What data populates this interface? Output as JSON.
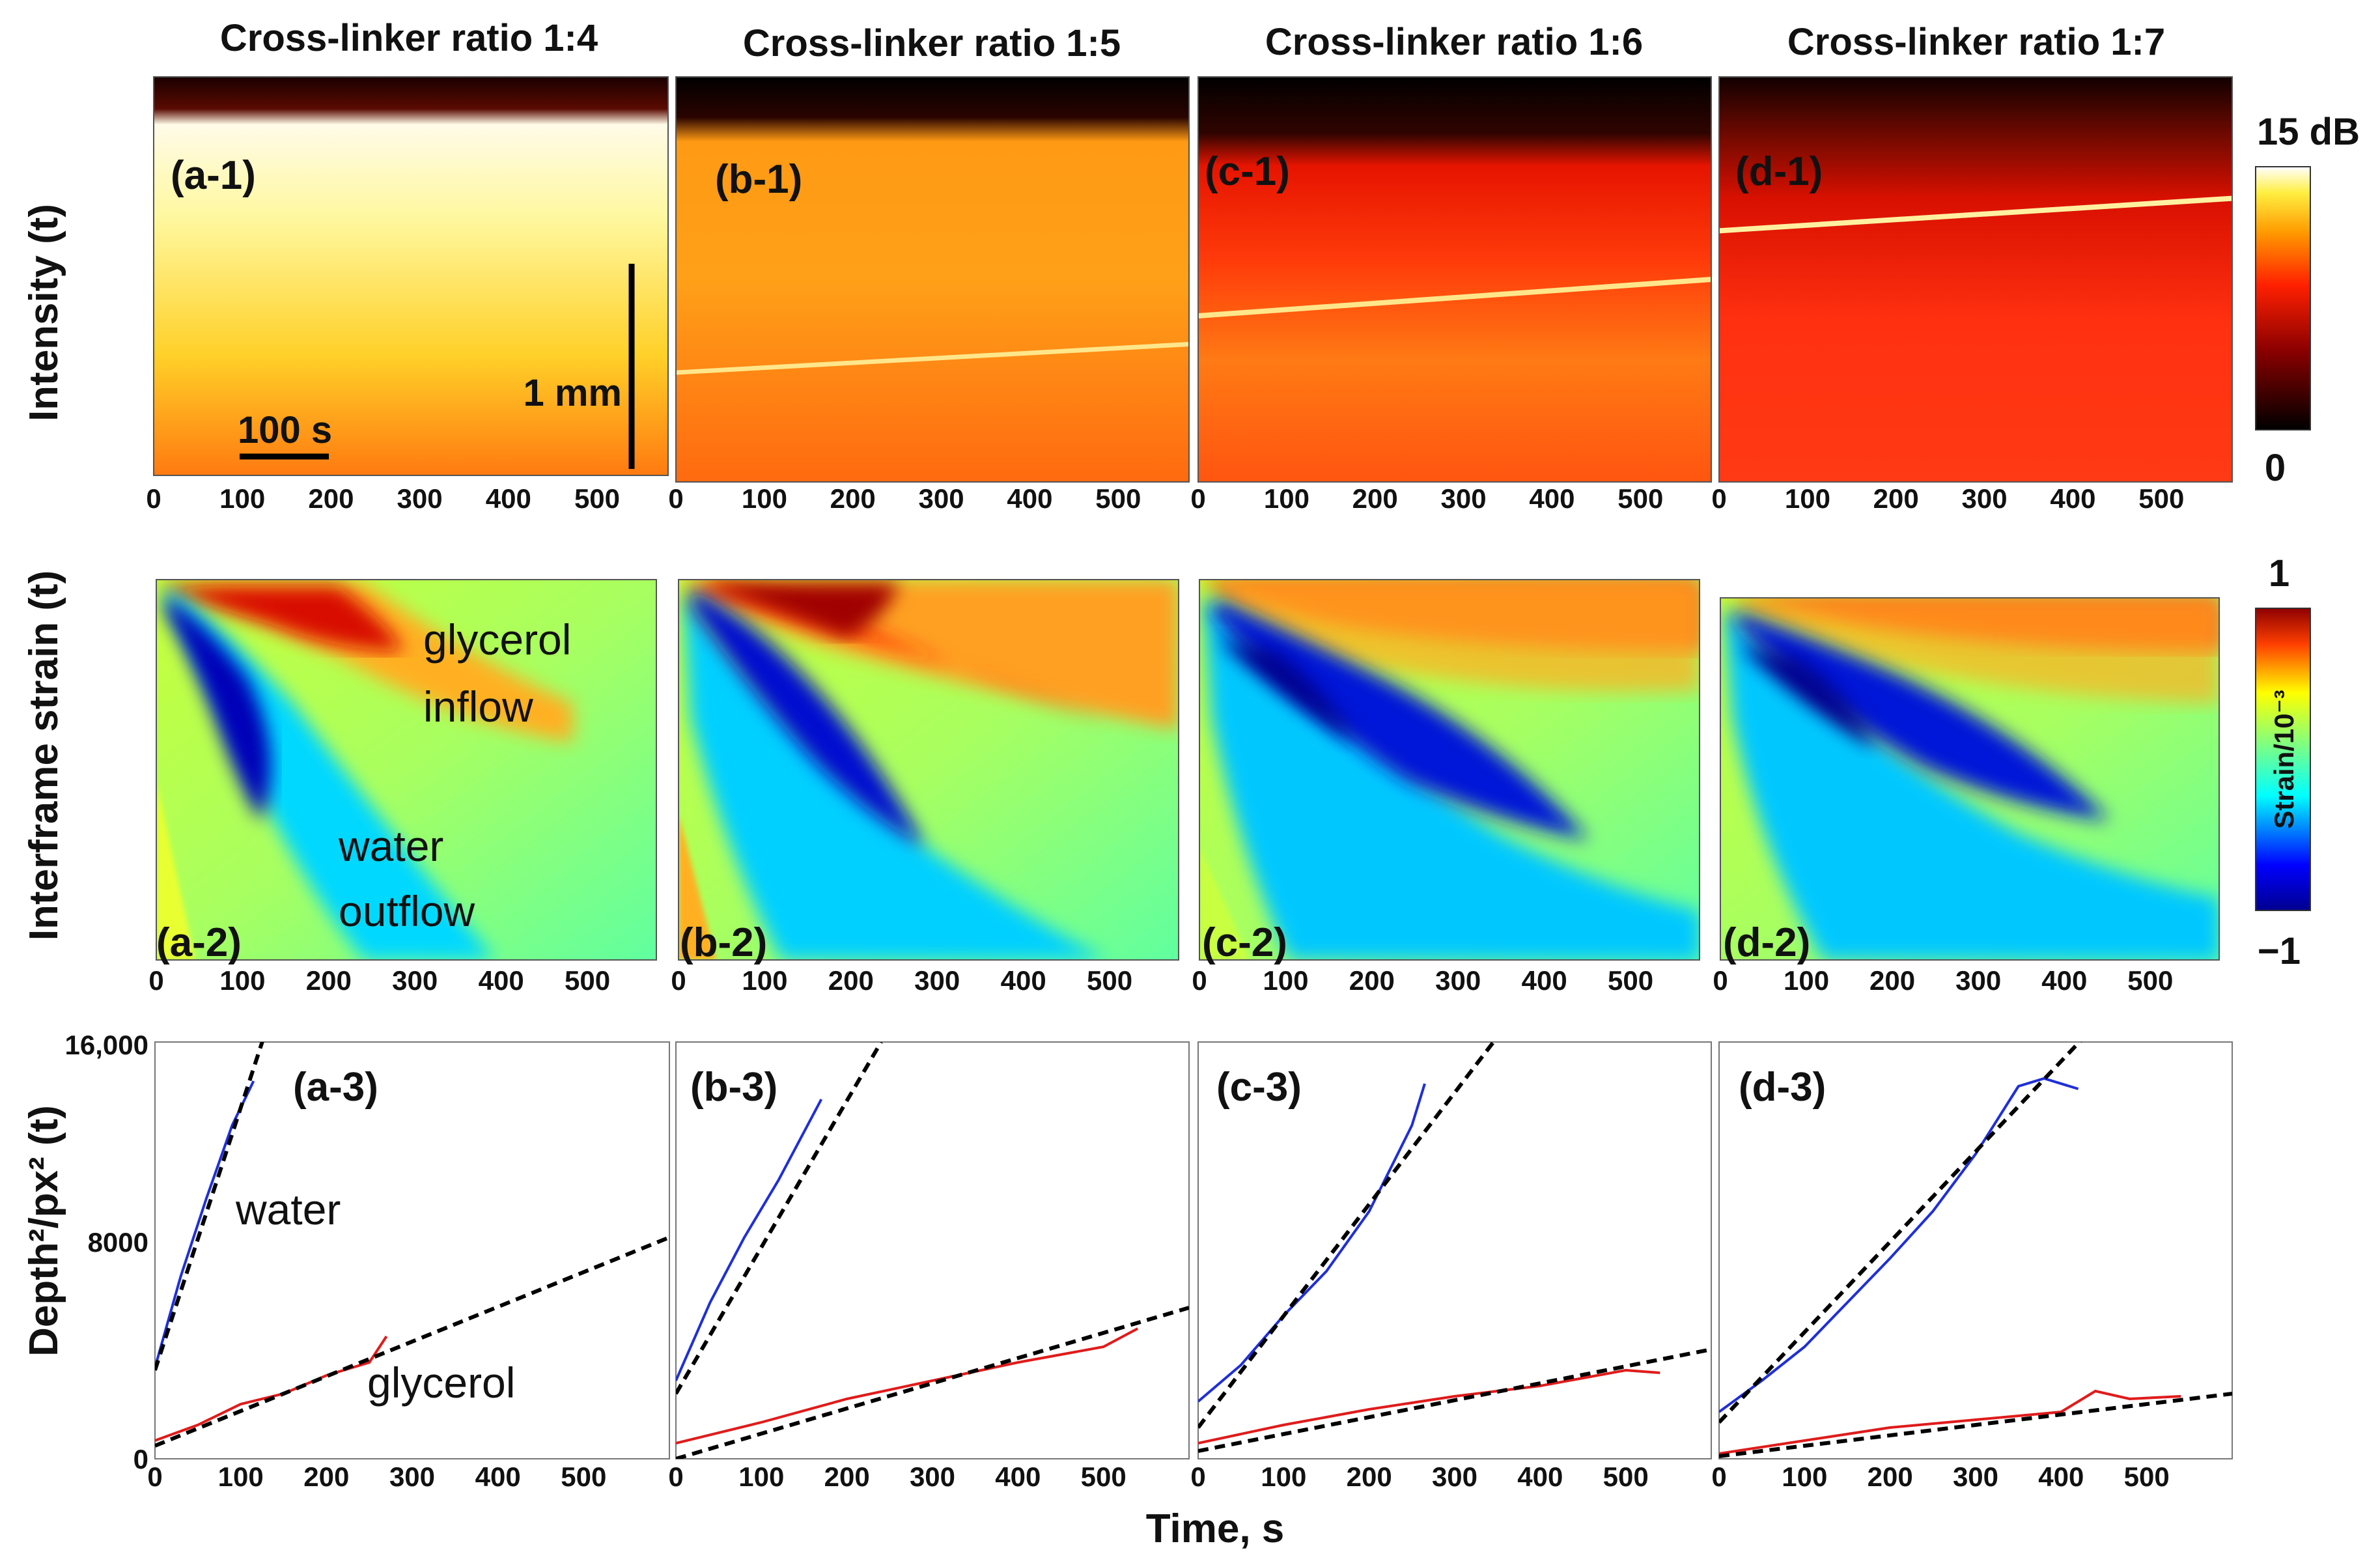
{
  "chart_data": [
    {
      "type": "heatmap",
      "title": "Cross-linker ratio 1:4",
      "panel_label": "(a-1)",
      "row_label": "Intensity (t)",
      "x_ticks": [
        "0",
        "100",
        "200",
        "300",
        "400",
        "500"
      ],
      "xlim": [
        0,
        580
      ],
      "line": null,
      "scalebars": {
        "time": "100 s",
        "depth": "1 mm"
      }
    },
    {
      "type": "heatmap",
      "title": "Cross-linker ratio 1:5",
      "panel_label": "(b-1)",
      "x_ticks": [
        "0",
        "100",
        "200",
        "300",
        "400",
        "500"
      ],
      "xlim": [
        0,
        580
      ],
      "line": {
        "t": [
          0,
          580
        ],
        "depth_frac": [
          0.73,
          0.66
        ]
      }
    },
    {
      "type": "heatmap",
      "title": "Cross-linker ratio 1:6",
      "panel_label": "(c-1)",
      "x_ticks": [
        "0",
        "100",
        "200",
        "300",
        "400",
        "500"
      ],
      "xlim": [
        0,
        580
      ],
      "line": {
        "t": [
          0,
          580
        ],
        "depth_frac": [
          0.59,
          0.5
        ]
      }
    },
    {
      "type": "heatmap",
      "title": "Cross-linker ratio 1:7",
      "panel_label": "(d-1)",
      "x_ticks": [
        "0",
        "100",
        "200",
        "300",
        "400",
        "500"
      ],
      "xlim": [
        0,
        580
      ],
      "line": {
        "t": [
          0,
          580
        ],
        "depth_frac": [
          0.38,
          0.3
        ]
      }
    },
    {
      "type": "heatmap",
      "panel_label": "(a-2)",
      "row_label": "Interframe strain (t)",
      "x_ticks": [
        "0",
        "100",
        "200",
        "300",
        "400",
        "500"
      ],
      "xlim": [
        0,
        580
      ],
      "annotations": [
        "glycerol",
        "inflow",
        "water",
        "outflow"
      ]
    },
    {
      "type": "heatmap",
      "panel_label": "(b-2)",
      "x_ticks": [
        "0",
        "100",
        "200",
        "300",
        "400",
        "500"
      ],
      "xlim": [
        0,
        580
      ]
    },
    {
      "type": "heatmap",
      "panel_label": "(c-2)",
      "x_ticks": [
        "0",
        "100",
        "200",
        "300",
        "400",
        "500"
      ],
      "xlim": [
        0,
        580
      ]
    },
    {
      "type": "heatmap",
      "panel_label": "(d-2)",
      "x_ticks": [
        "0",
        "100",
        "200",
        "300",
        "400",
        "500"
      ],
      "xlim": [
        0,
        580
      ]
    },
    {
      "type": "line",
      "panel_label": "(a-3)",
      "row_label": "Depth²/px² (t)",
      "y_ticks": [
        "16,000",
        "8000",
        "0"
      ],
      "ylim": [
        0,
        16000
      ],
      "xlim": [
        0,
        600
      ],
      "x_ticks": [
        "0",
        "100",
        "200",
        "300",
        "400",
        "500"
      ],
      "annotations": [
        "water",
        "glycerol"
      ],
      "series": [
        {
          "name": "water",
          "color": "#1f2fd8",
          "x": [
            0,
            30,
            60,
            90,
            115
          ],
          "y": [
            3500,
            7000,
            10000,
            12800,
            14500
          ]
        },
        {
          "name": "glycerol",
          "color": "#e01b1b",
          "x": [
            0,
            50,
            100,
            150,
            200,
            250,
            270
          ],
          "y": [
            700,
            1300,
            2100,
            2500,
            3200,
            3700,
            4700
          ]
        },
        {
          "name": "water fit",
          "color": "#000000",
          "dashed": true,
          "x": [
            0,
            130
          ],
          "y": [
            3400,
            16500
          ]
        },
        {
          "name": "glycerol fit",
          "color": "#000000",
          "dashed": true,
          "x": [
            0,
            600
          ],
          "y": [
            500,
            8500
          ]
        }
      ]
    },
    {
      "type": "line",
      "panel_label": "(b-3)",
      "ylim": [
        0,
        16000
      ],
      "xlim": [
        0,
        600
      ],
      "x_ticks": [
        "0",
        "100",
        "200",
        "300",
        "400",
        "500"
      ],
      "series": [
        {
          "name": "water",
          "color": "#1f2fd8",
          "x": [
            0,
            40,
            80,
            120,
            170
          ],
          "y": [
            3000,
            6000,
            8500,
            10700,
            13800
          ]
        },
        {
          "name": "glycerol",
          "color": "#e01b1b",
          "x": [
            0,
            100,
            200,
            300,
            400,
            500,
            540
          ],
          "y": [
            600,
            1400,
            2300,
            3000,
            3700,
            4300,
            5000
          ]
        },
        {
          "name": "water fit",
          "color": "#000000",
          "dashed": true,
          "x": [
            0,
            240
          ],
          "y": [
            2500,
            16000
          ]
        },
        {
          "name": "glycerol fit",
          "color": "#000000",
          "dashed": true,
          "x": [
            0,
            600
          ],
          "y": [
            0,
            5800
          ]
        }
      ]
    },
    {
      "type": "line",
      "panel_label": "(c-3)",
      "ylim": [
        0,
        16000
      ],
      "xlim": [
        0,
        600
      ],
      "x_ticks": [
        "0",
        "100",
        "200",
        "300",
        "400",
        "500"
      ],
      "series": [
        {
          "name": "water",
          "color": "#1f2fd8",
          "x": [
            0,
            50,
            100,
            150,
            200,
            250,
            265
          ],
          "y": [
            2200,
            3600,
            5500,
            7200,
            9500,
            12800,
            14400
          ]
        },
        {
          "name": "glycerol",
          "color": "#e01b1b",
          "x": [
            0,
            100,
            200,
            300,
            400,
            500,
            540
          ],
          "y": [
            600,
            1300,
            1900,
            2400,
            2800,
            3400,
            3300
          ]
        },
        {
          "name": "water fit",
          "color": "#000000",
          "dashed": true,
          "x": [
            0,
            350
          ],
          "y": [
            1200,
            16200
          ]
        },
        {
          "name": "glycerol fit",
          "color": "#000000",
          "dashed": true,
          "x": [
            0,
            600
          ],
          "y": [
            300,
            4200
          ]
        }
      ]
    },
    {
      "type": "line",
      "panel_label": "(d-3)",
      "ylim": [
        0,
        16000
      ],
      "xlim": [
        0,
        600
      ],
      "x_ticks": [
        "0",
        "100",
        "200",
        "300",
        "400",
        "500"
      ],
      "series": [
        {
          "name": "water",
          "color": "#1f2fd8",
          "x": [
            0,
            50,
            100,
            150,
            200,
            250,
            300,
            350,
            380,
            420
          ],
          "y": [
            1800,
            3000,
            4300,
            6000,
            7700,
            9500,
            11700,
            14300,
            14600,
            14200
          ]
        },
        {
          "name": "glycerol",
          "color": "#e01b1b",
          "x": [
            0,
            100,
            200,
            300,
            400,
            440,
            480,
            540
          ],
          "y": [
            200,
            700,
            1200,
            1500,
            1800,
            2600,
            2300,
            2400
          ]
        },
        {
          "name": "water fit",
          "color": "#000000",
          "dashed": true,
          "x": [
            0,
            430
          ],
          "y": [
            1400,
            16300
          ]
        },
        {
          "name": "glycerol fit",
          "color": "#000000",
          "dashed": true,
          "x": [
            0,
            600
          ],
          "y": [
            100,
            2500
          ]
        }
      ]
    }
  ],
  "colorbars": {
    "intensity": {
      "max_label": "15 dB",
      "min_label": "0"
    },
    "strain": {
      "max_label": "1",
      "min_label": "−1",
      "unit_label": "Strain/10⁻³"
    }
  },
  "x_axis_label": "Time, s"
}
